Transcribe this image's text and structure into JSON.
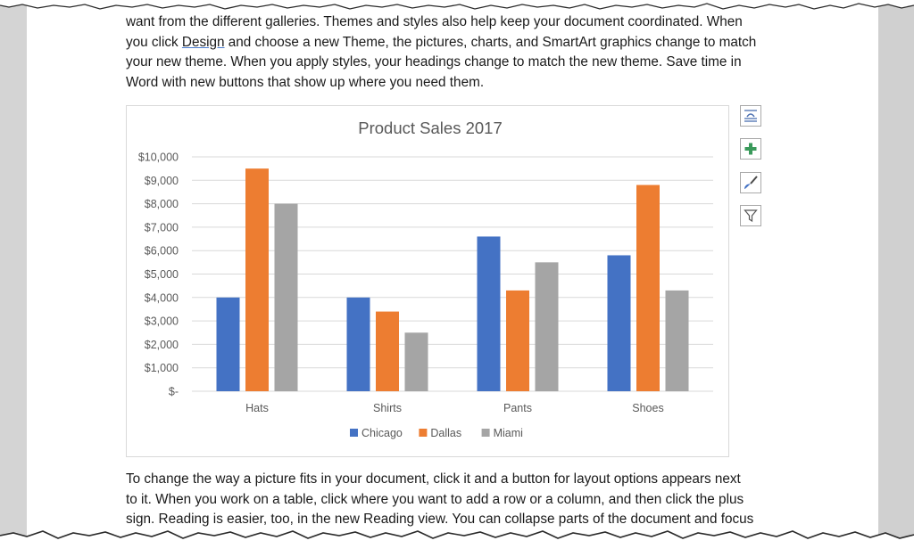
{
  "document": {
    "paragraph_top": {
      "line1": "want from the different galleries. Themes and styles also help keep your document coordinated. When",
      "line2_pre": "you click ",
      "line2_link": "Design",
      "line2_post": " and choose a new Theme, the pictures, charts, and SmartArt graphics change to match",
      "line3": "your new theme. When you apply styles, your headings change to match the new theme. Save time in",
      "line4": "Word with new buttons that show up where you need them."
    },
    "paragraph_bottom": {
      "line1": "To change the way a picture fits in your document, click it and a button for layout options appears next",
      "line2": "to it. When you work on a table, click where you want to add a row or a column, and then click the plus",
      "line3": "sign. Reading is easier, too, in the new Reading view. You can collapse parts of the document and focus"
    }
  },
  "chart_tools": [
    {
      "name": "layout-options-icon"
    },
    {
      "name": "chart-elements-plus-icon"
    },
    {
      "name": "chart-styles-brush-icon"
    },
    {
      "name": "chart-filters-icon"
    }
  ],
  "colors": {
    "chicago": "#4472c4",
    "dallas": "#ed7d31",
    "miami": "#a5a5a5",
    "gridline": "#d9d9d9",
    "axis_text": "#595959",
    "plus_green": "#3a9a5b"
  },
  "chart_data": {
    "type": "bar",
    "title": "Product Sales 2017",
    "categories": [
      "Hats",
      "Shirts",
      "Pants",
      "Shoes"
    ],
    "series": [
      {
        "name": "Chicago",
        "values": [
          4000,
          4000,
          6600,
          5800
        ]
      },
      {
        "name": "Dallas",
        "values": [
          9500,
          3400,
          4300,
          8800
        ]
      },
      {
        "name": "Miami",
        "values": [
          8000,
          2500,
          5500,
          4300
        ]
      }
    ],
    "ylim": [
      0,
      10000
    ],
    "y_ticks": [
      0,
      1000,
      2000,
      3000,
      4000,
      5000,
      6000,
      7000,
      8000,
      9000,
      10000
    ],
    "y_tick_labels": [
      "$-",
      "$1,000",
      "$2,000",
      "$3,000",
      "$4,000",
      "$5,000",
      "$6,000",
      "$7,000",
      "$8,000",
      "$9,000",
      "$10,000"
    ],
    "xlabel": "",
    "ylabel": "",
    "grid": true,
    "legend": "bottom"
  }
}
